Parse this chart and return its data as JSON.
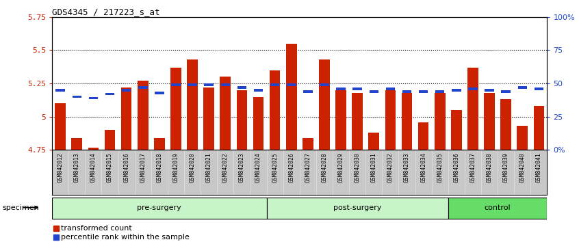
{
  "title": "GDS4345 / 217223_s_at",
  "samples": [
    "GSM842012",
    "GSM842013",
    "GSM842014",
    "GSM842015",
    "GSM842016",
    "GSM842017",
    "GSM842018",
    "GSM842019",
    "GSM842020",
    "GSM842021",
    "GSM842022",
    "GSM842023",
    "GSM842024",
    "GSM842025",
    "GSM842026",
    "GSM842027",
    "GSM842028",
    "GSM842029",
    "GSM842030",
    "GSM842031",
    "GSM842032",
    "GSM842033",
    "GSM842034",
    "GSM842035",
    "GSM842036",
    "GSM842037",
    "GSM842038",
    "GSM842039",
    "GSM842040",
    "GSM842041"
  ],
  "bar_values": [
    5.1,
    4.84,
    4.77,
    4.9,
    5.22,
    5.27,
    4.84,
    5.37,
    5.43,
    5.22,
    5.3,
    5.2,
    5.15,
    5.35,
    5.55,
    4.84,
    5.43,
    5.2,
    5.18,
    4.88,
    5.2,
    5.18,
    4.96,
    5.18,
    5.05,
    5.37,
    5.18,
    5.13,
    4.93,
    5.08
  ],
  "percentile_values": [
    5.2,
    5.15,
    5.14,
    5.17,
    5.2,
    5.22,
    5.18,
    5.24,
    5.24,
    5.24,
    5.24,
    5.22,
    5.2,
    5.24,
    5.24,
    5.19,
    5.24,
    5.21,
    5.21,
    5.19,
    5.21,
    5.19,
    5.19,
    5.19,
    5.2,
    5.21,
    5.2,
    5.19,
    5.22,
    5.21
  ],
  "y_min": 4.75,
  "y_max": 5.75,
  "y_ticks": [
    4.75,
    5.0,
    5.25,
    5.5,
    5.75
  ],
  "y_tick_labels": [
    "4.75",
    "5",
    "5.25",
    "5.5",
    "5.75"
  ],
  "right_y_tick_labels": [
    "0%",
    "25",
    "50",
    "75",
    "100%"
  ],
  "bar_color": "#cc2200",
  "percentile_color": "#2244cc",
  "group_list": [
    [
      "pre-surgery",
      0,
      13,
      "#c8f5c8"
    ],
    [
      "post-surgery",
      13,
      24,
      "#c8f5c8"
    ],
    [
      "control",
      24,
      30,
      "#66dd66"
    ]
  ],
  "tick_bg_color": "#c8c8c8",
  "grid_color": "black"
}
